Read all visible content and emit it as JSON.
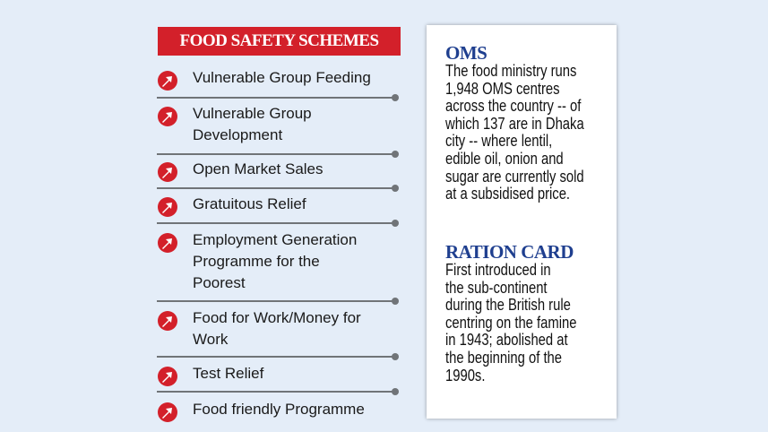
{
  "title": "FOOD SAFETY SCHEMES",
  "schemes": [
    {
      "lines": [
        "Vulnerable Group Feeding"
      ]
    },
    {
      "lines": [
        "Vulnerable Group",
        "Development"
      ]
    },
    {
      "lines": [
        "Open Market Sales"
      ]
    },
    {
      "lines": [
        "Gratuitous Relief"
      ]
    },
    {
      "lines": [
        "Employment Generation",
        "Programme for the",
        "Poorest"
      ]
    },
    {
      "lines": [
        "Food for Work/Money for",
        "Work"
      ]
    },
    {
      "lines": [
        "Test Relief"
      ]
    },
    {
      "lines": [
        "Food friendly Programme"
      ]
    }
  ],
  "icon": "arrow-up-right-circle-icon",
  "colors": {
    "accent": "#d3202a",
    "heading": "#1f3f8f",
    "background": "#e4edf8"
  },
  "panel": {
    "oms": {
      "heading": "OMS",
      "lines": [
        "The food ministry runs",
        "1,948 OMS centres",
        "across the country -- of",
        "which 137 are in Dhaka",
        "city -- where lentil,",
        "edible oil, onion and",
        "sugar are currently sold",
        "at a subsidised price."
      ]
    },
    "ration": {
      "heading": "RATION CARD",
      "lines": [
        "First introduced in",
        "the sub-continent",
        "during the British rule",
        "centring on the famine",
        "in 1943; abolished at",
        "the beginning of the",
        "1990s."
      ]
    }
  }
}
